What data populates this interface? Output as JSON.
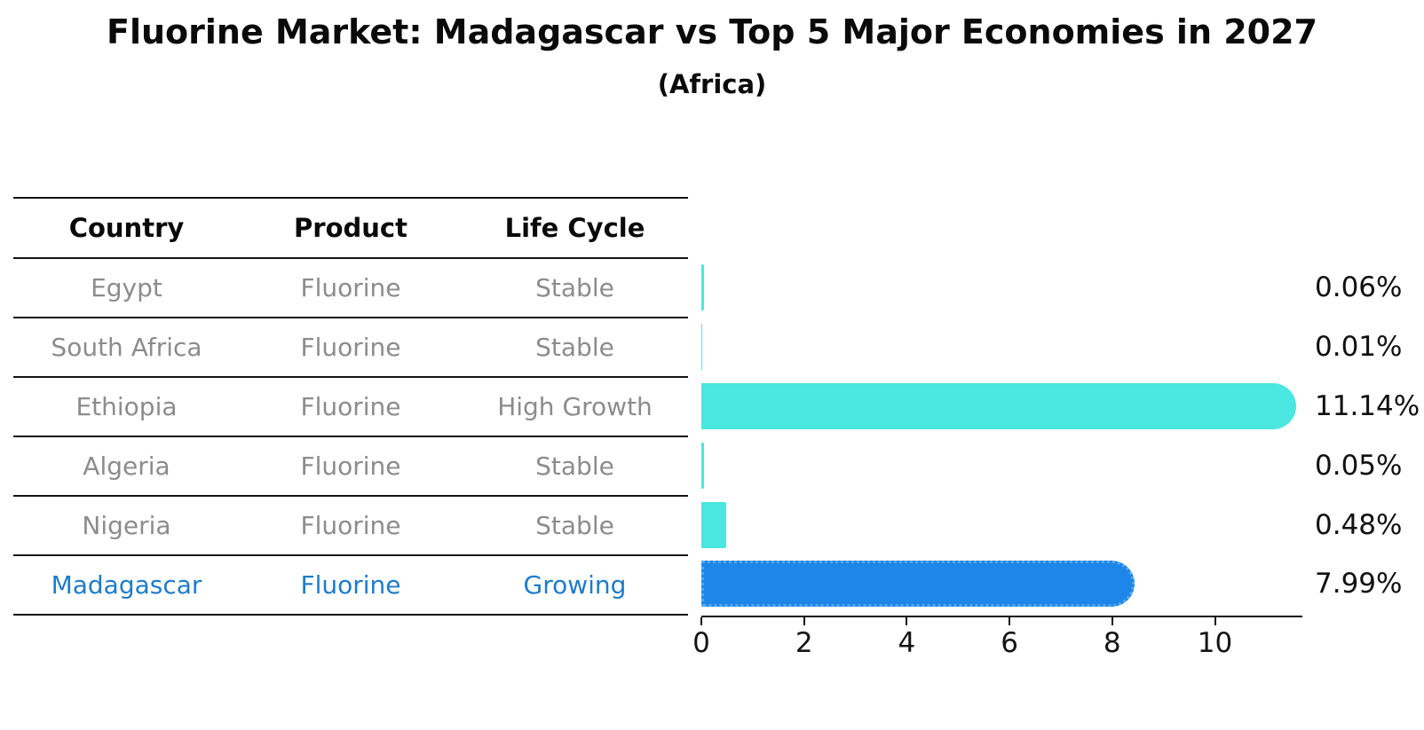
{
  "title": "Fluorine Market: Madagascar vs Top 5 Major Economies in 2027",
  "subtitle": "(Africa)",
  "table": {
    "headers": [
      "Country",
      "Product",
      "Life Cycle"
    ],
    "rows": [
      {
        "country": "Egypt",
        "product": "Fluorine",
        "life_cycle": "Stable",
        "highlight": false
      },
      {
        "country": "South Africa",
        "product": "Fluorine",
        "life_cycle": "Stable",
        "highlight": false
      },
      {
        "country": "Ethiopia",
        "product": "Fluorine",
        "life_cycle": "High Growth",
        "highlight": false
      },
      {
        "country": "Algeria",
        "product": "Fluorine",
        "life_cycle": "Stable",
        "highlight": false
      },
      {
        "country": "Nigeria",
        "product": "Fluorine",
        "life_cycle": "Stable",
        "highlight": false
      },
      {
        "country": "Madagascar",
        "product": "Fluorine",
        "life_cycle": "Growing",
        "highlight": true
      }
    ]
  },
  "chart_data": {
    "type": "bar",
    "orientation": "horizontal",
    "categories": [
      "Egypt",
      "South Africa",
      "Ethiopia",
      "Algeria",
      "Nigeria",
      "Madagascar"
    ],
    "values": [
      0.06,
      0.01,
      11.14,
      0.05,
      0.48,
      7.99
    ],
    "value_labels": [
      "0.06%",
      "0.01%",
      "11.14%",
      "0.05%",
      "0.48%",
      "7.99%"
    ],
    "highlight_index": 5,
    "x_ticks": [
      0,
      2,
      4,
      6,
      8,
      10
    ],
    "xlim": [
      0,
      11.7
    ],
    "grid": false,
    "legend": "none",
    "bar_color": "#4ae6e0",
    "highlight_bar_color": "#1e86e8",
    "highlight_text_color": "#1e7ccb",
    "label_color": "#111111"
  }
}
